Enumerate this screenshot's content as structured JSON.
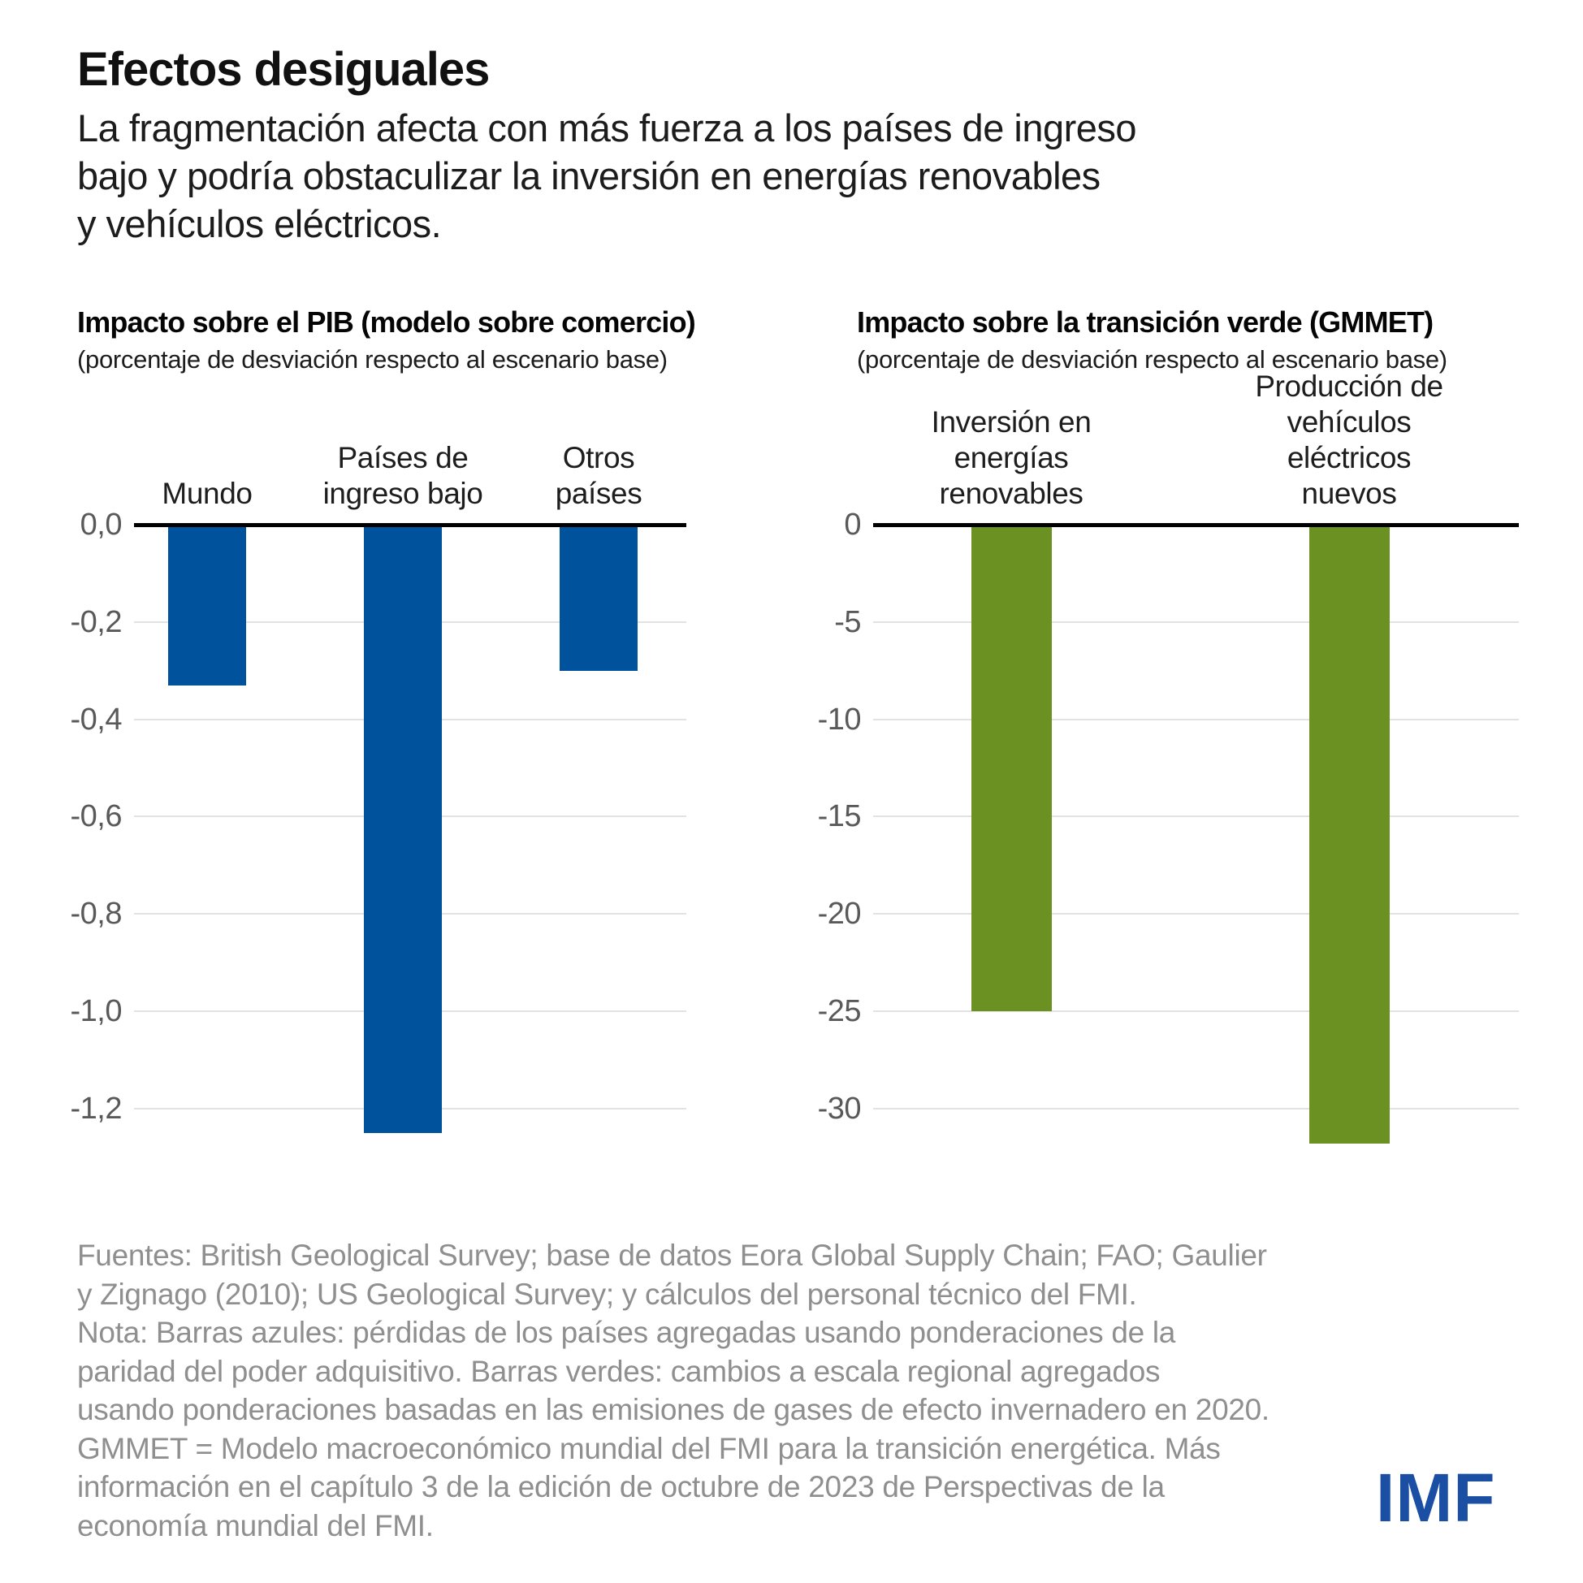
{
  "header": {
    "title": "Efectos desiguales",
    "subtitle": "La fragmentación afecta con más fuerza a los países de ingreso\nbajo y podría obstaculizar la inversión en energías renovables\ny vehículos eléctricos."
  },
  "colors": {
    "blue_bar": "#00529C",
    "green_bar": "#6B9122",
    "axis_line": "#000000",
    "gridline": "#E2E2E2",
    "tick_text": "#595959",
    "footnote_text": "#8F8F8F",
    "imf_logo_blue": "#1A4FA3"
  },
  "chart_data": [
    {
      "type": "bar",
      "title": "Impacto sobre el PIB (modelo sobre comercio)",
      "subtitle": "(porcentaje de desviación respecto al escenario base)",
      "categories": [
        "Mundo",
        "Países de\ningreso bajo",
        "Otros\npaíses"
      ],
      "values": [
        -0.33,
        -1.25,
        -0.3
      ],
      "bar_color": "#00529C",
      "ylim": [
        -1.3,
        0
      ],
      "yticks": [
        0,
        -0.2,
        -0.4,
        -0.6,
        -0.8,
        -1.0,
        -1.2
      ],
      "ytick_labels": [
        "0,0",
        "-0,2",
        "-0,4",
        "-0,6",
        "-0,8",
        "-1,0",
        "-1,2"
      ],
      "grid": true,
      "legend": "none"
    },
    {
      "type": "bar",
      "title": "Impacto sobre la transición verde (GMMET)",
      "subtitle": "(porcentaje de desviación respecto al escenario base)",
      "categories": [
        "Inversión en\nenergías\nrenovables",
        "Producción de\nvehículos eléctricos\nnuevos"
      ],
      "values": [
        -25,
        -31.8
      ],
      "bar_color": "#6B9122",
      "ylim": [
        -33,
        0
      ],
      "yticks": [
        0,
        -5,
        -10,
        -15,
        -20,
        -25,
        -30
      ],
      "ytick_labels": [
        "0",
        "-5",
        "-10",
        "-15",
        "-20",
        "-25",
        "-30"
      ],
      "grid": true,
      "legend": "none"
    }
  ],
  "footnote": {
    "text": "Fuentes: British Geological Survey; base de datos Eora Global Supply Chain; FAO; Gaulier\ny Zignago (2010); US Geological Survey; y cálculos del personal técnico del FMI.\nNota: Barras azules: pérdidas de los países agregadas usando ponderaciones de la\nparidad del poder adquisitivo. Barras verdes: cambios a escala regional agregados\nusando ponderaciones basadas en las emisiones de gases de efecto invernadero en 2020.\nGMMET = Modelo macroeconómico mundial del FMI para la transición energética. Más\ninformación en el capítulo 3 de la edición de octubre de 2023 de Perspectivas de la\neconomía mundial del FMI."
  },
  "logo": {
    "text": "IMF"
  }
}
